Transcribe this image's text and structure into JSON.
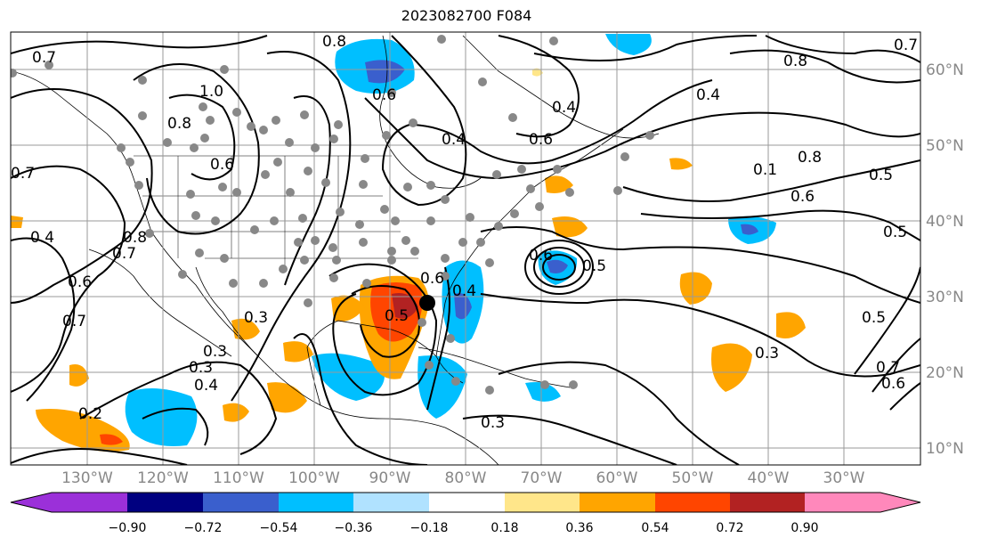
{
  "title": "2023082700 F084",
  "lon_labels": [
    "130°W",
    "120°W",
    "110°W",
    "100°W",
    "90°W",
    "80°W",
    "70°W",
    "60°W",
    "50°W",
    "40°W",
    "30°W"
  ],
  "lat_labels": [
    "60°N",
    "50°N",
    "40°N",
    "30°N",
    "20°N",
    "10°N"
  ],
  "colorbar": {
    "ticks": [
      "−0.90",
      "−0.72",
      "−0.54",
      "−0.36",
      "−0.18",
      "0.18",
      "0.36",
      "0.54",
      "0.72",
      "0.90"
    ],
    "colors": [
      "#9b30d9",
      "#000080",
      "#3a5fcd",
      "#00bfff",
      "#b0e2ff",
      "#ffffff",
      "#ffe68a",
      "#ffa500",
      "#ff4500",
      "#b22222",
      "#ff88bb"
    ]
  },
  "contour_labels": [
    "0.7",
    "0.8",
    "0.6",
    "1.0",
    "0.8",
    "0.6",
    "0.4",
    "0.6",
    "0.4",
    "0.4",
    "0.8",
    "0.7",
    "0.1",
    "0.8",
    "0.6",
    "0.5",
    "0.7",
    "0.4",
    "0.8",
    "0.7",
    "0.6",
    "0.7",
    "0.5",
    "0.6",
    "0.5",
    "0.6",
    "0.4",
    "0.3",
    "0.3",
    "0.3",
    "0.4",
    "0.2",
    "0.3",
    "0.3",
    "0.5",
    "0.7",
    "0.6",
    "0.5"
  ],
  "colors": {
    "ocean_fill": "#ffffff",
    "grid": "#9a9a9a",
    "contour": "#000000",
    "marker": "#888888",
    "center": "#000000"
  }
}
